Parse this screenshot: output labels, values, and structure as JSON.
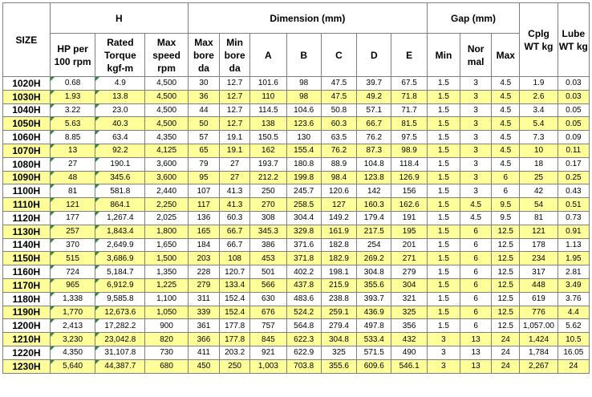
{
  "headers": {
    "size": "SIZE",
    "group_h": "H",
    "group_dimension": "Dimension (mm)",
    "group_gap": "Gap  (mm)",
    "cplg_wt": "Cplg WT kg",
    "lube_wt": "Lube WT kg",
    "hp_per_100rpm": "HP per 100 rpm",
    "rated_torque": "Rated Torque kgf-m",
    "max_speed": "Max speed rpm",
    "max_bore": "Max bore da",
    "min_bore": "Min bore da",
    "dim_a": "A",
    "dim_b": "B",
    "dim_c": "C",
    "dim_d": "D",
    "dim_e": "E",
    "gap_min": "Min",
    "gap_normal": "Nor mal",
    "gap_max": "Max"
  },
  "rows": [
    [
      "1020H",
      "0.68",
      "4.9",
      "4,500",
      "30",
      "12.7",
      "101.6",
      "98",
      "47.5",
      "39.7",
      "67.5",
      "1.5",
      "3",
      "4.5",
      "1.9",
      "0.03"
    ],
    [
      "1030H",
      "1.93",
      "13.8",
      "4,500",
      "36",
      "12.7",
      "110",
      "98",
      "47.5",
      "49.2",
      "71.8",
      "1.5",
      "3",
      "4.5",
      "2.6",
      "0.03"
    ],
    [
      "1040H",
      "3.22",
      "23.0",
      "4,500",
      "44",
      "12.7",
      "114.5",
      "104.6",
      "50.8",
      "57.1",
      "71.7",
      "1.5",
      "3",
      "4.5",
      "3.4",
      "0.05"
    ],
    [
      "1050H",
      "5.63",
      "40.3",
      "4,500",
      "50",
      "12.7",
      "138",
      "123.6",
      "60.3",
      "66.7",
      "81.5",
      "1.5",
      "3",
      "4.5",
      "5.4",
      "0.05"
    ],
    [
      "1060H",
      "8.85",
      "63.4",
      "4,350",
      "57",
      "19.1",
      "150.5",
      "130",
      "63.5",
      "76.2",
      "97.5",
      "1.5",
      "3",
      "4.5",
      "7.3",
      "0.09"
    ],
    [
      "1070H",
      "13",
      "92.2",
      "4,125",
      "65",
      "19.1",
      "162",
      "155.4",
      "76.2",
      "87.3",
      "98.9",
      "1.5",
      "3",
      "4.5",
      "10",
      "0.11"
    ],
    [
      "1080H",
      "27",
      "190.1",
      "3,600",
      "79",
      "27",
      "193.7",
      "180.8",
      "88.9",
      "104.8",
      "118.4",
      "1.5",
      "3",
      "4.5",
      "18",
      "0.17"
    ],
    [
      "1090H",
      "48",
      "345.6",
      "3,600",
      "95",
      "27",
      "212.2",
      "199.8",
      "98.4",
      "123.8",
      "126.9",
      "1.5",
      "3",
      "6",
      "25",
      "0.25"
    ],
    [
      "1100H",
      "81",
      "581.8",
      "2,440",
      "107",
      "41.3",
      "250",
      "245.7",
      "120.6",
      "142",
      "156",
      "1.5",
      "3",
      "6",
      "42",
      "0.43"
    ],
    [
      "1110H",
      "121",
      "864.1",
      "2,250",
      "117",
      "41.3",
      "270",
      "258.5",
      "127",
      "160.3",
      "162.6",
      "1.5",
      "4.5",
      "9.5",
      "54",
      "0.51"
    ],
    [
      "1120H",
      "177",
      "1,267.4",
      "2,025",
      "136",
      "60.3",
      "308",
      "304.4",
      "149.2",
      "179.4",
      "191",
      "1.5",
      "4.5",
      "9.5",
      "81",
      "0.73"
    ],
    [
      "1130H",
      "257",
      "1,843.4",
      "1,800",
      "165",
      "66.7",
      "345.3",
      "329.8",
      "161.9",
      "217.5",
      "195",
      "1.5",
      "6",
      "12.5",
      "121",
      "0.91"
    ],
    [
      "1140H",
      "370",
      "2,649.9",
      "1,650",
      "184",
      "66.7",
      "386",
      "371.6",
      "182.8",
      "254",
      "201",
      "1.5",
      "6",
      "12.5",
      "178",
      "1.13"
    ],
    [
      "1150H",
      "515",
      "3,686.9",
      "1,500",
      "203",
      "108",
      "453",
      "371.8",
      "182.9",
      "269.2",
      "271",
      "1.5",
      "6",
      "12.5",
      "234",
      "1.95"
    ],
    [
      "1160H",
      "724",
      "5,184.7",
      "1,350",
      "228",
      "120.7",
      "501",
      "402.2",
      "198.1",
      "304.8",
      "279",
      "1.5",
      "6",
      "12.5",
      "317",
      "2.81"
    ],
    [
      "1170H",
      "965",
      "6,912.9",
      "1,225",
      "279",
      "133.4",
      "566",
      "437.8",
      "215.9",
      "355.6",
      "304",
      "1.5",
      "6",
      "12.5",
      "448",
      "3.49"
    ],
    [
      "1180H",
      "1,338",
      "9,585.8",
      "1,100",
      "311",
      "152.4",
      "630",
      "483.6",
      "238.8",
      "393.7",
      "321",
      "1.5",
      "6",
      "12.5",
      "619",
      "3.76"
    ],
    [
      "1190H",
      "1,770",
      "12,673.6",
      "1,050",
      "339",
      "152.4",
      "676",
      "524.2",
      "259.1",
      "436.9",
      "325",
      "1.5",
      "6",
      "12.5",
      "776",
      "4.4"
    ],
    [
      "1200H",
      "2,413",
      "17,282.2",
      "900",
      "361",
      "177.8",
      "757",
      "564.8",
      "279.4",
      "497.8",
      "356",
      "1.5",
      "6",
      "12.5",
      "1,057.00",
      "5.62"
    ],
    [
      "1210H",
      "3,230",
      "23,042.8",
      "820",
      "366",
      "177.8",
      "845",
      "622.3",
      "304.8",
      "533.4",
      "432",
      "3",
      "13",
      "24",
      "1,424",
      "10.5"
    ],
    [
      "1220H",
      "4,350",
      "31,107.8",
      "730",
      "411",
      "203.2",
      "921",
      "622.9",
      "325",
      "571.5",
      "490",
      "3",
      "13",
      "24",
      "1,784",
      "16.05"
    ],
    [
      "1230H",
      "5,640",
      "44,387.7",
      "680",
      "450",
      "250",
      "1,003",
      "703.8",
      "355.6",
      "609.6",
      "546.1",
      "3",
      "13",
      "24",
      "2,267",
      "24"
    ]
  ],
  "highlight_color": "#ffff99"
}
